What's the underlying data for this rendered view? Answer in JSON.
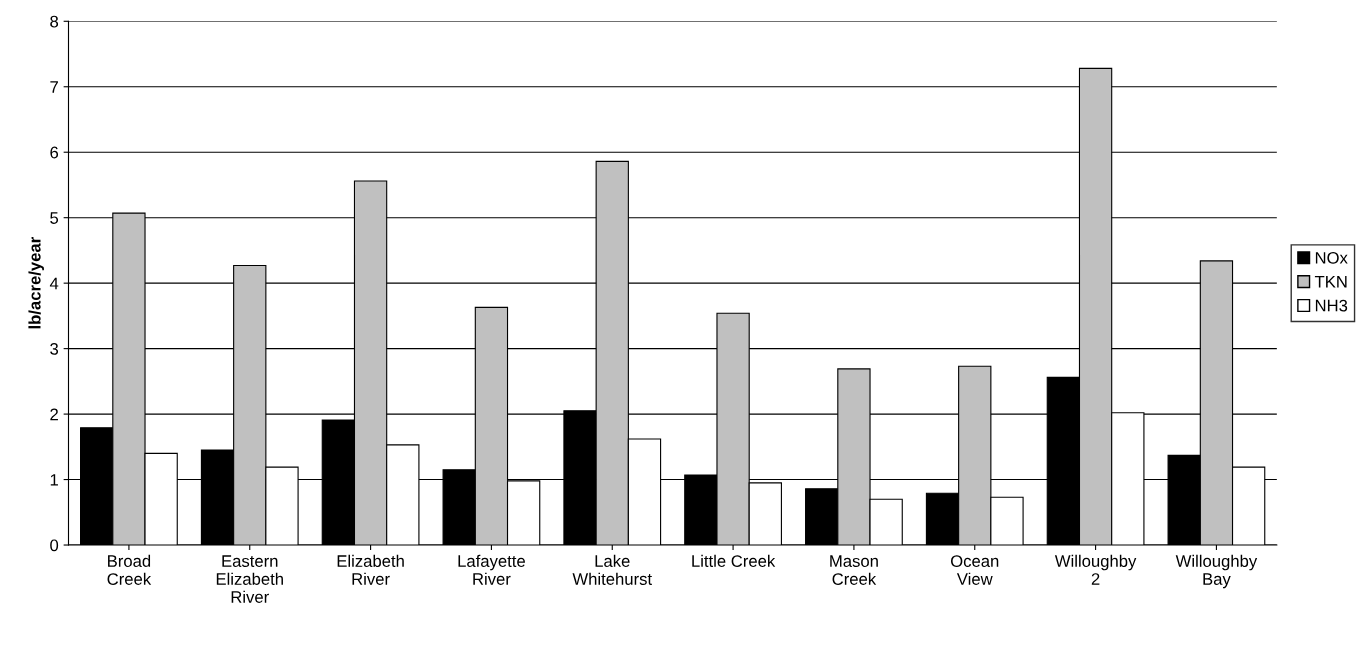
{
  "chart_data": {
    "type": "bar",
    "ylabel": "lb/acre/year",
    "categories": [
      "Broad\nCreek",
      "Eastern\nElizabeth\nRiver",
      "Elizabeth\nRiver",
      "Lafayette\nRiver",
      "Lake\nWhitehurst",
      "Little Creek",
      "Mason\nCreek",
      "Ocean\nView",
      "Willoughby\n2",
      "Willoughby\nBay"
    ],
    "series": [
      {
        "name": "NOx",
        "color": "#000000",
        "values": [
          1.79,
          1.45,
          1.91,
          1.15,
          2.05,
          1.07,
          0.86,
          0.79,
          2.56,
          1.37
        ]
      },
      {
        "name": "TKN",
        "color": "#c0c0c0",
        "values": [
          5.07,
          4.27,
          5.56,
          3.63,
          5.86,
          3.54,
          2.69,
          2.73,
          7.28,
          4.34
        ]
      },
      {
        "name": "NH3",
        "color": "#ffffff",
        "values": [
          1.4,
          1.19,
          1.53,
          0.98,
          1.62,
          0.95,
          0.7,
          0.73,
          2.02,
          1.19
        ]
      }
    ],
    "ylim": [
      0,
      8
    ],
    "yticks": [
      0,
      1,
      2,
      3,
      4,
      5,
      6,
      7,
      8
    ],
    "grid": "y",
    "legend": "right"
  }
}
